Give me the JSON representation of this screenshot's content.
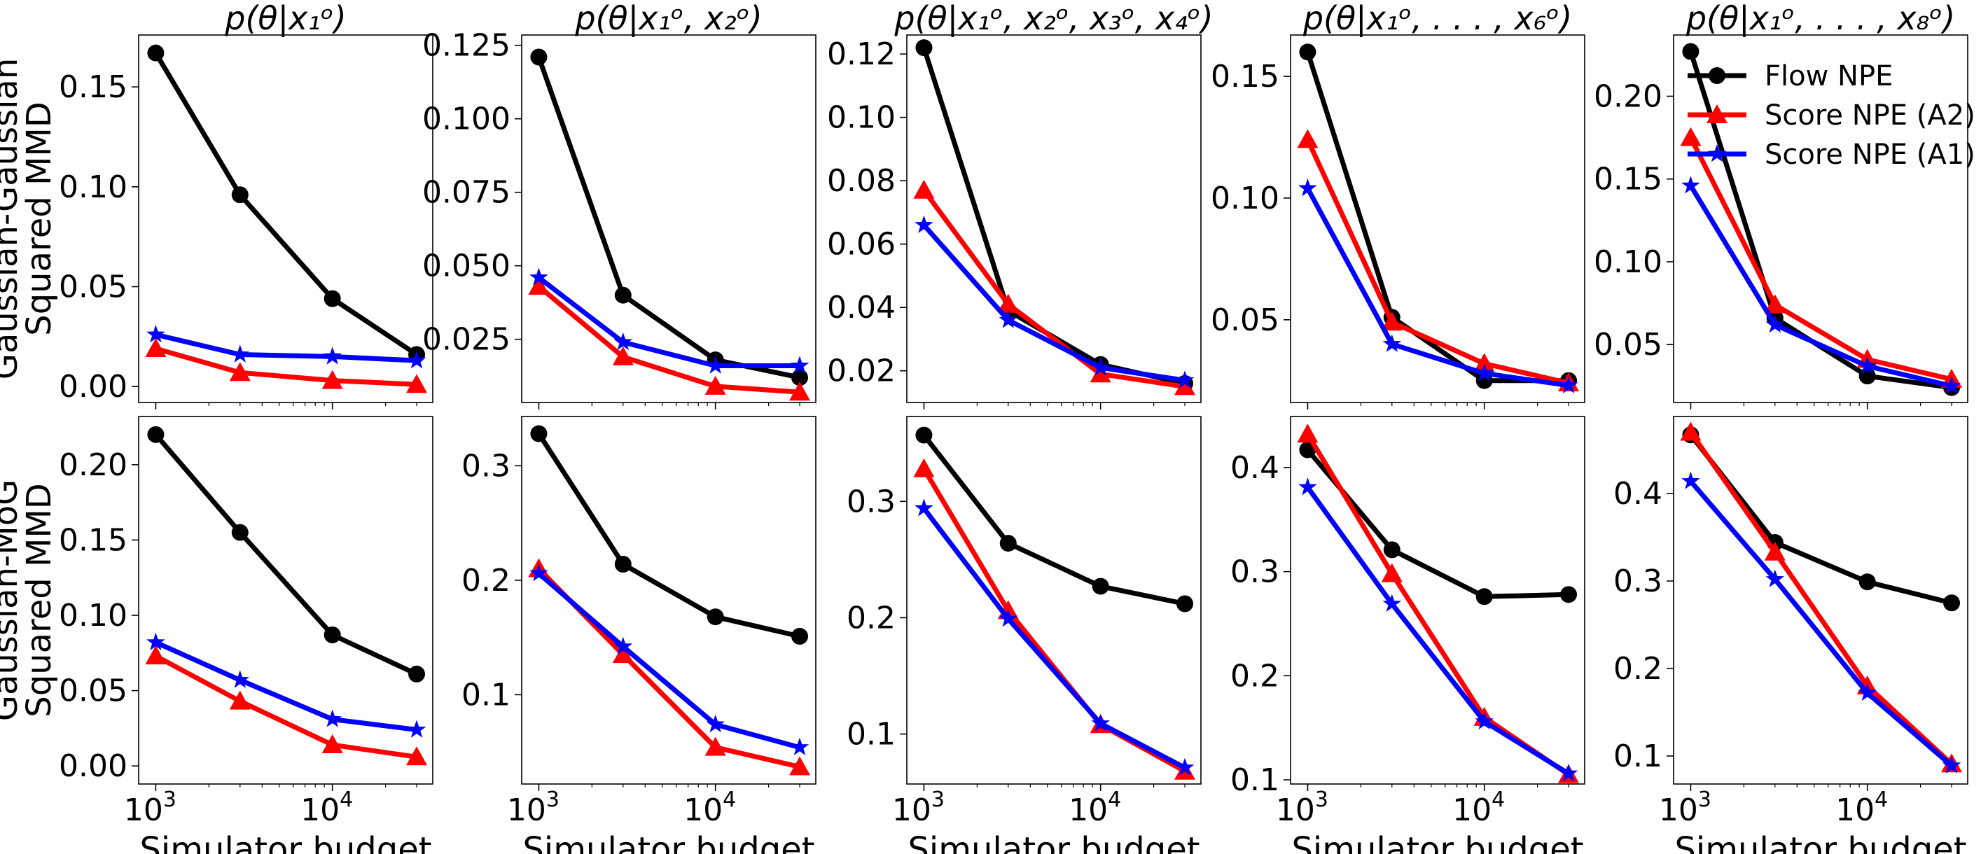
{
  "colors": {
    "flow": "#000000",
    "a2": "#ff0000",
    "a1": "#0000ff"
  },
  "legend": [
    {
      "key": "flow",
      "label": "Flow NPE",
      "marker": "circle"
    },
    {
      "key": "a2",
      "label": "Score NPE (A2)",
      "marker": "triangle"
    },
    {
      "key": "a1",
      "label": "Score NPE (A1)",
      "marker": "star"
    }
  ],
  "x_tick_labels": [
    "10",
    "10"
  ],
  "x_tick_exponents": [
    "3",
    "4"
  ],
  "chart_data": {
    "type": "line",
    "x": [
      1000,
      3000,
      10000,
      30000
    ],
    "xscale": "log",
    "xlabel": "Simulator budget",
    "xlim": [
      800,
      37000
    ],
    "panel_titles": [
      {
        "main": "p(θ|x",
        "sub": "1",
        "sup": "o",
        "rest": ")"
      },
      {
        "main": "p(θ|x",
        "sub": "1",
        "sup": "o",
        "rest": ", x",
        "sub2": "2",
        "sup2": "o",
        "end": ")"
      },
      {
        "text": "p(θ|x₁ᵒ, x₂ᵒ, x₃ᵒ, x₄ᵒ)"
      },
      {
        "text": "p(θ|x₁ᵒ, . . . , x₆ᵒ)"
      },
      {
        "text": "p(θ|x₁ᵒ, . . . , x₈ᵒ)"
      }
    ],
    "title_text": [
      "p(θ|x₁ᵒ)",
      "p(θ|x₁ᵒ, x₂ᵒ)",
      "p(θ|x₁ᵒ, x₂ᵒ, x₃ᵒ, x₄ᵒ)",
      "p(θ|x₁ᵒ, . . . , x₆ᵒ)",
      "p(θ|x₁ᵒ, . . . , x₈ᵒ)"
    ],
    "rows": [
      {
        "ylabel": [
          "Gaussian-Gaussian",
          "Squared MMD"
        ],
        "panels": [
          {
            "ylim": [
              -0.008,
              0.176
            ],
            "yticks": [
              "0.00",
              "0.05",
              "0.10",
              "0.15"
            ],
            "ytick_values": [
              0,
              0.05,
              0.1,
              0.15
            ],
            "series": {
              "flow": [
                0.167,
                0.096,
                0.044,
                0.016
              ],
              "a2": [
                0.019,
                0.007,
                0.003,
                0.001
              ],
              "a1": [
                0.026,
                0.016,
                0.015,
                0.013
              ]
            }
          },
          {
            "ylim": [
              0.0035,
              0.1285
            ],
            "yticks": [
              "0.025",
              "0.050",
              "0.075",
              "0.100",
              "0.125"
            ],
            "ytick_values": [
              0.025,
              0.05,
              0.075,
              0.1,
              0.125
            ],
            "series": {
              "flow": [
                0.121,
                0.04,
                0.018,
                0.012
              ],
              "a2": [
                0.043,
                0.019,
                0.009,
                0.007
              ],
              "a1": [
                0.046,
                0.024,
                0.016,
                0.016
              ]
            }
          },
          {
            "ylim": [
              0.01,
              0.126
            ],
            "yticks": [
              "0.02",
              "0.04",
              "0.06",
              "0.08",
              "0.10",
              "0.12"
            ],
            "ytick_values": [
              0.02,
              0.04,
              0.06,
              0.08,
              0.1,
              0.12
            ],
            "series": {
              "flow": [
                0.122,
                0.039,
                0.022,
                0.016
              ],
              "a2": [
                0.077,
                0.041,
                0.019,
                0.015
              ],
              "a1": [
                0.066,
                0.036,
                0.021,
                0.017
              ]
            }
          },
          {
            "ylim": [
              0.016,
              0.167
            ],
            "yticks": [
              "0.05",
              "0.10",
              "0.15"
            ],
            "ytick_values": [
              0.05,
              0.1,
              0.15
            ],
            "series": {
              "flow": [
                0.16,
                0.051,
                0.025,
                0.025
              ],
              "a2": [
                0.124,
                0.049,
                0.032,
                0.024
              ],
              "a1": [
                0.104,
                0.04,
                0.028,
                0.023
              ]
            }
          },
          {
            "ylim": [
              0.015,
              0.237
            ],
            "yticks": [
              "0.05",
              "0.10",
              "0.15",
              "0.20"
            ],
            "ytick_values": [
              0.05,
              0.1,
              0.15,
              0.2
            ],
            "series": {
              "flow": [
                0.227,
                0.066,
                0.031,
                0.024
              ],
              "a2": [
                0.175,
                0.074,
                0.041,
                0.029
              ],
              "a1": [
                0.146,
                0.062,
                0.037,
                0.025
              ]
            }
          }
        ]
      },
      {
        "ylabel": [
          "Gaussian-MoG",
          "Squared MMD"
        ],
        "panels": [
          {
            "ylim": [
              -0.012,
              0.232
            ],
            "yticks": [
              "0.00",
              "0.05",
              "0.10",
              "0.15",
              "0.20"
            ],
            "ytick_values": [
              0,
              0.05,
              0.1,
              0.15,
              0.2
            ],
            "series": {
              "flow": [
                0.22,
                0.155,
                0.087,
                0.061
              ],
              "a2": [
                0.073,
                0.043,
                0.014,
                0.006
              ],
              "a1": [
                0.082,
                0.057,
                0.031,
                0.024
              ]
            }
          },
          {
            "ylim": [
              0.022,
              0.343
            ],
            "yticks": [
              "0.1",
              "0.2",
              "0.3"
            ],
            "ytick_values": [
              0.1,
              0.2,
              0.3
            ],
            "series": {
              "flow": [
                0.328,
                0.214,
                0.168,
                0.151
              ],
              "a2": [
                0.21,
                0.135,
                0.054,
                0.037
              ],
              "a1": [
                0.206,
                0.142,
                0.074,
                0.054
              ]
            }
          },
          {
            "ylim": [
              0.057,
              0.373
            ],
            "yticks": [
              "0.1",
              "0.2",
              "0.3"
            ],
            "ytick_values": [
              0.1,
              0.2,
              0.3
            ],
            "series": {
              "flow": [
                0.357,
                0.264,
                0.227,
                0.212
              ],
              "a2": [
                0.328,
                0.206,
                0.108,
                0.068
              ],
              "a1": [
                0.294,
                0.199,
                0.109,
                0.071
              ]
            }
          },
          {
            "ylim": [
              0.096,
              0.449
            ],
            "yticks": [
              "0.1",
              "0.2",
              "0.3",
              "0.4"
            ],
            "ytick_values": [
              0.1,
              0.2,
              0.3,
              0.4
            ],
            "series": {
              "flow": [
                0.417,
                0.321,
                0.276,
                0.278
              ],
              "a2": [
                0.432,
                0.298,
                0.16,
                0.105
              ],
              "a1": [
                0.381,
                0.269,
                0.156,
                0.106
              ]
            }
          },
          {
            "ylim": [
              0.068,
              0.488
            ],
            "yticks": [
              "0.1",
              "0.2",
              "0.3",
              "0.4"
            ],
            "ytick_values": [
              0.1,
              0.2,
              0.3,
              0.4
            ],
            "series": {
              "flow": [
                0.467,
                0.344,
                0.299,
                0.275
              ],
              "a2": [
                0.47,
                0.333,
                0.18,
                0.091
              ],
              "a1": [
                0.414,
                0.302,
                0.172,
                0.089
              ]
            }
          }
        ]
      }
    ]
  }
}
